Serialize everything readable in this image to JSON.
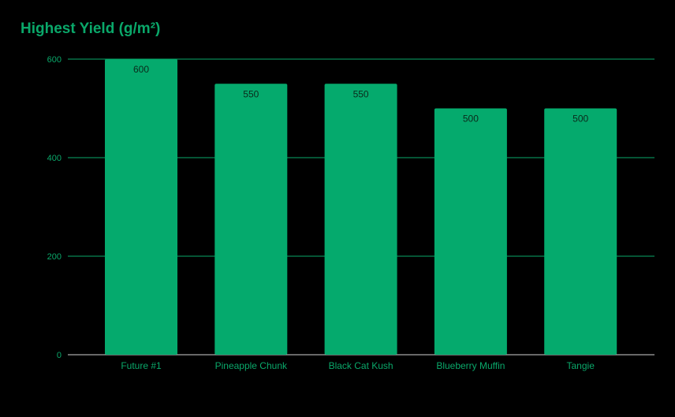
{
  "chart_data": {
    "type": "bar",
    "title": "Highest Yield (g/m²)",
    "xlabel": "",
    "ylabel": "",
    "categories": [
      "Future #1",
      "Pineapple Chunk",
      "Black Cat Kush",
      "Blueberry Muffin",
      "Tangie"
    ],
    "values": [
      600,
      550,
      550,
      500,
      500
    ],
    "ylim": [
      0,
      600
    ],
    "yticks": [
      0,
      200,
      400,
      600
    ],
    "grid": true,
    "legend": "none",
    "data_labels": true,
    "colors": {
      "bar": "#05aa6d",
      "text": "#0aa86a",
      "background": "#000000"
    }
  }
}
